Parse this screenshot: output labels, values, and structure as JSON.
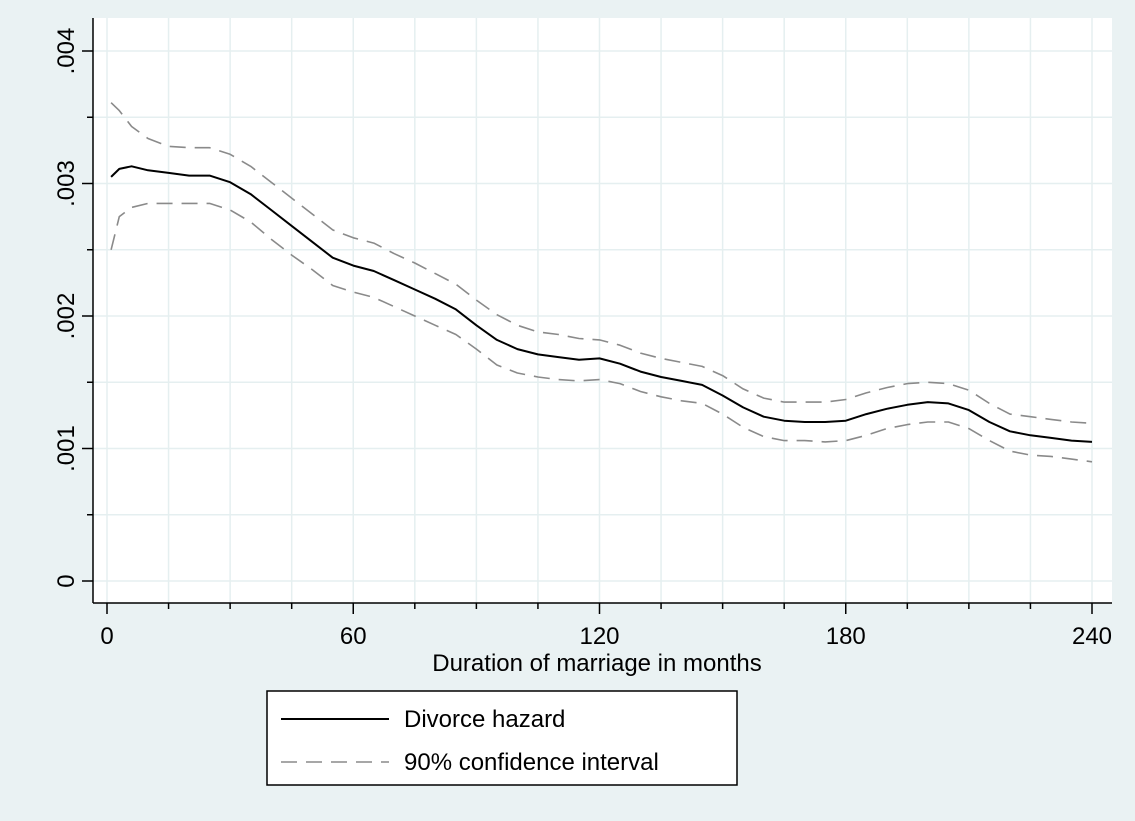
{
  "chart_data": {
    "type": "line",
    "title": "",
    "xlabel": "Duration of marriage in months",
    "ylabel": "",
    "xlim": [
      0,
      240
    ],
    "ylim": [
      0,
      0.004
    ],
    "x_ticks": [
      0,
      60,
      120,
      180,
      240
    ],
    "x_tick_labels": [
      "0",
      "60",
      "120",
      "180",
      "240"
    ],
    "y_ticks": [
      0,
      0.001,
      0.002,
      0.003,
      0.004
    ],
    "y_tick_labels": [
      "0",
      ".001",
      ".002",
      ".003",
      ".004"
    ],
    "grid": true,
    "legend_position": "bottom",
    "colors": {
      "background": "#eaf2f3",
      "plot_area": "#ffffff",
      "grid": "#e5eff0",
      "hazard": "#000000",
      "interval": "#8a8a8a"
    },
    "series": [
      {
        "name": "Divorce hazard",
        "style": "solid",
        "x": [
          1,
          3,
          6,
          10,
          15,
          20,
          25,
          30,
          35,
          40,
          45,
          50,
          55,
          60,
          65,
          70,
          75,
          80,
          85,
          90,
          95,
          100,
          105,
          110,
          115,
          120,
          125,
          130,
          135,
          140,
          145,
          150,
          155,
          160,
          165,
          170,
          175,
          180,
          185,
          190,
          195,
          200,
          205,
          210,
          215,
          220,
          225,
          230,
          235,
          240
        ],
        "y": [
          0.00305,
          0.00311,
          0.00313,
          0.0031,
          0.00308,
          0.00306,
          0.00306,
          0.00301,
          0.00292,
          0.0028,
          0.00268,
          0.00256,
          0.00244,
          0.00238,
          0.00234,
          0.00227,
          0.0022,
          0.00213,
          0.00205,
          0.00193,
          0.00182,
          0.00175,
          0.00171,
          0.00169,
          0.00167,
          0.00168,
          0.00164,
          0.00158,
          0.00154,
          0.00151,
          0.00148,
          0.0014,
          0.00131,
          0.00124,
          0.00121,
          0.0012,
          0.0012,
          0.00121,
          0.00126,
          0.0013,
          0.00133,
          0.00135,
          0.00134,
          0.00129,
          0.0012,
          0.00113,
          0.0011,
          0.00108,
          0.00106,
          0.00105
        ]
      },
      {
        "name": "90% confidence interval",
        "style": "dashed",
        "x": [
          1,
          3,
          6,
          10,
          15,
          20,
          25,
          30,
          35,
          40,
          45,
          50,
          55,
          60,
          65,
          70,
          75,
          80,
          85,
          90,
          95,
          100,
          105,
          110,
          115,
          120,
          125,
          130,
          135,
          140,
          145,
          150,
          155,
          160,
          165,
          170,
          175,
          180,
          185,
          190,
          195,
          200,
          205,
          210,
          215,
          220,
          225,
          230,
          235,
          240
        ],
        "y": [
          0.00361,
          0.00355,
          0.00343,
          0.00334,
          0.00328,
          0.00327,
          0.00327,
          0.00322,
          0.00313,
          0.00301,
          0.00289,
          0.00277,
          0.00265,
          0.00259,
          0.00255,
          0.00247,
          0.0024,
          0.00232,
          0.00224,
          0.00212,
          0.00201,
          0.00193,
          0.00188,
          0.00186,
          0.00183,
          0.00182,
          0.00178,
          0.00172,
          0.00168,
          0.00165,
          0.00162,
          0.00155,
          0.00145,
          0.00138,
          0.00135,
          0.00135,
          0.00135,
          0.00137,
          0.00142,
          0.00146,
          0.00149,
          0.0015,
          0.00149,
          0.00144,
          0.00134,
          0.00126,
          0.00124,
          0.00122,
          0.0012,
          0.00119
        ]
      },
      {
        "name": "",
        "style": "dashed",
        "x": [
          1,
          3,
          6,
          10,
          15,
          20,
          25,
          30,
          35,
          40,
          45,
          50,
          55,
          60,
          65,
          70,
          75,
          80,
          85,
          90,
          95,
          100,
          105,
          110,
          115,
          120,
          125,
          130,
          135,
          140,
          145,
          150,
          155,
          160,
          165,
          170,
          175,
          180,
          185,
          190,
          195,
          200,
          205,
          210,
          215,
          220,
          225,
          230,
          235,
          240
        ],
        "y": [
          0.0025,
          0.00275,
          0.00282,
          0.00285,
          0.00285,
          0.00285,
          0.00285,
          0.0028,
          0.00271,
          0.00258,
          0.00246,
          0.00235,
          0.00223,
          0.00218,
          0.00214,
          0.00207,
          0.002,
          0.00193,
          0.00186,
          0.00175,
          0.00163,
          0.00157,
          0.00154,
          0.00152,
          0.00151,
          0.00152,
          0.00149,
          0.00143,
          0.00139,
          0.00136,
          0.00134,
          0.00126,
          0.00116,
          0.00109,
          0.00106,
          0.00106,
          0.00105,
          0.00106,
          0.0011,
          0.00115,
          0.00118,
          0.0012,
          0.0012,
          0.00115,
          0.00106,
          0.00098,
          0.00095,
          0.00094,
          0.00092,
          0.0009
        ]
      }
    ],
    "legend": [
      {
        "label": "Divorce hazard",
        "style": "solid"
      },
      {
        "label": "90% confidence interval",
        "style": "dashed"
      }
    ]
  }
}
